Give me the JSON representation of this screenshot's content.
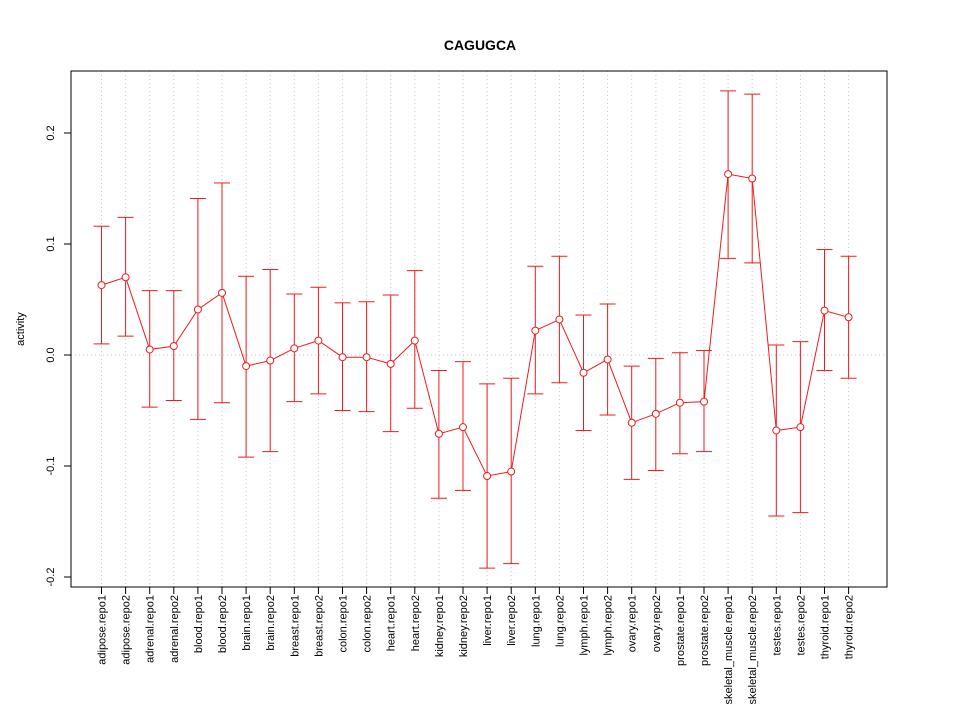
{
  "chart_data": {
    "type": "line",
    "title": "CAGUGCA",
    "ylabel": "activity",
    "xlabel": "",
    "ylim": [
      -0.21,
      0.255
    ],
    "yticks": [
      -0.2,
      -0.1,
      0.0,
      0.1,
      0.2
    ],
    "ytick_labels": [
      "-0.2",
      "-0.1",
      "0.0",
      "0.1",
      "0.2"
    ],
    "grid": "dotted",
    "series_color": "#ee1c1c",
    "grid_color": "#c8c8c8",
    "categories": [
      "adipose.repo1",
      "adipose.repo2",
      "adrenal.repo1",
      "adrenal.repo2",
      "blood.repo1",
      "blood.repo2",
      "brain.repo1",
      "brain.repo2",
      "breast.repo1",
      "breast.repo2",
      "colon.repo1",
      "colon.repo2",
      "heart.repo1",
      "heart.repo2",
      "kidney.repo1",
      "kidney.repo2",
      "liver.repo1",
      "liver.repo2",
      "lung.repo1",
      "lung.repo2",
      "lymph.repo1",
      "lymph.repo2",
      "ovary.repo1",
      "ovary.repo2",
      "prostate.repo1",
      "prostate.repo2",
      "skeletal_muscle.repo1",
      "skeletal_muscle.repo2",
      "testes.repo1",
      "testes.repo2",
      "thyroid.repo1",
      "thyroid.repo2"
    ],
    "values": [
      0.063,
      0.07,
      0.005,
      0.008,
      0.041,
      0.056,
      -0.01,
      -0.005,
      0.006,
      0.013,
      -0.002,
      -0.002,
      -0.008,
      0.013,
      -0.071,
      -0.065,
      -0.109,
      -0.105,
      0.022,
      0.032,
      -0.016,
      -0.004,
      -0.061,
      -0.053,
      -0.043,
      -0.042,
      0.163,
      0.159,
      -0.068,
      -0.065,
      0.04,
      0.034
    ],
    "upper": [
      0.116,
      0.124,
      0.058,
      0.058,
      0.141,
      0.155,
      0.071,
      0.077,
      0.055,
      0.061,
      0.047,
      0.048,
      0.054,
      0.076,
      -0.014,
      -0.006,
      -0.026,
      -0.021,
      0.08,
      0.089,
      0.036,
      0.046,
      -0.01,
      -0.003,
      0.002,
      0.004,
      0.238,
      0.235,
      0.009,
      0.012,
      0.095,
      0.089
    ],
    "lower": [
      0.01,
      0.017,
      -0.047,
      -0.041,
      -0.058,
      -0.043,
      -0.092,
      -0.087,
      -0.042,
      -0.035,
      -0.05,
      -0.051,
      -0.069,
      -0.048,
      -0.129,
      -0.122,
      -0.192,
      -0.188,
      -0.035,
      -0.025,
      -0.068,
      -0.054,
      -0.112,
      -0.104,
      -0.089,
      -0.087,
      0.087,
      0.083,
      -0.145,
      -0.142,
      -0.014,
      -0.021
    ]
  }
}
